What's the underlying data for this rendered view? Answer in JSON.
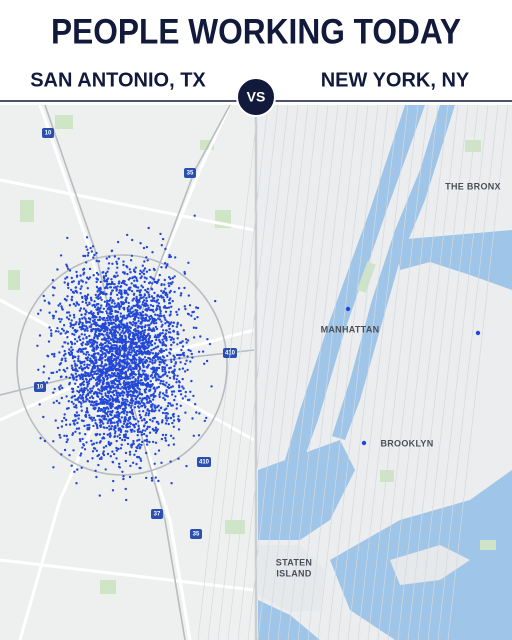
{
  "header": {
    "title": "PEOPLE WORKING TODAY",
    "left_label": "SAN ANTONIO, TX",
    "vs": "VS",
    "right_label": "NEW YORK, NY"
  },
  "map_left": {
    "shields": [
      "10",
      "35",
      "410",
      "10",
      "410",
      "37",
      "35"
    ]
  },
  "map_right": {
    "labels": [
      "THE BRONX",
      "MANHATTAN",
      "BROOKLYN",
      "STATEN",
      "ISLAND"
    ]
  }
}
